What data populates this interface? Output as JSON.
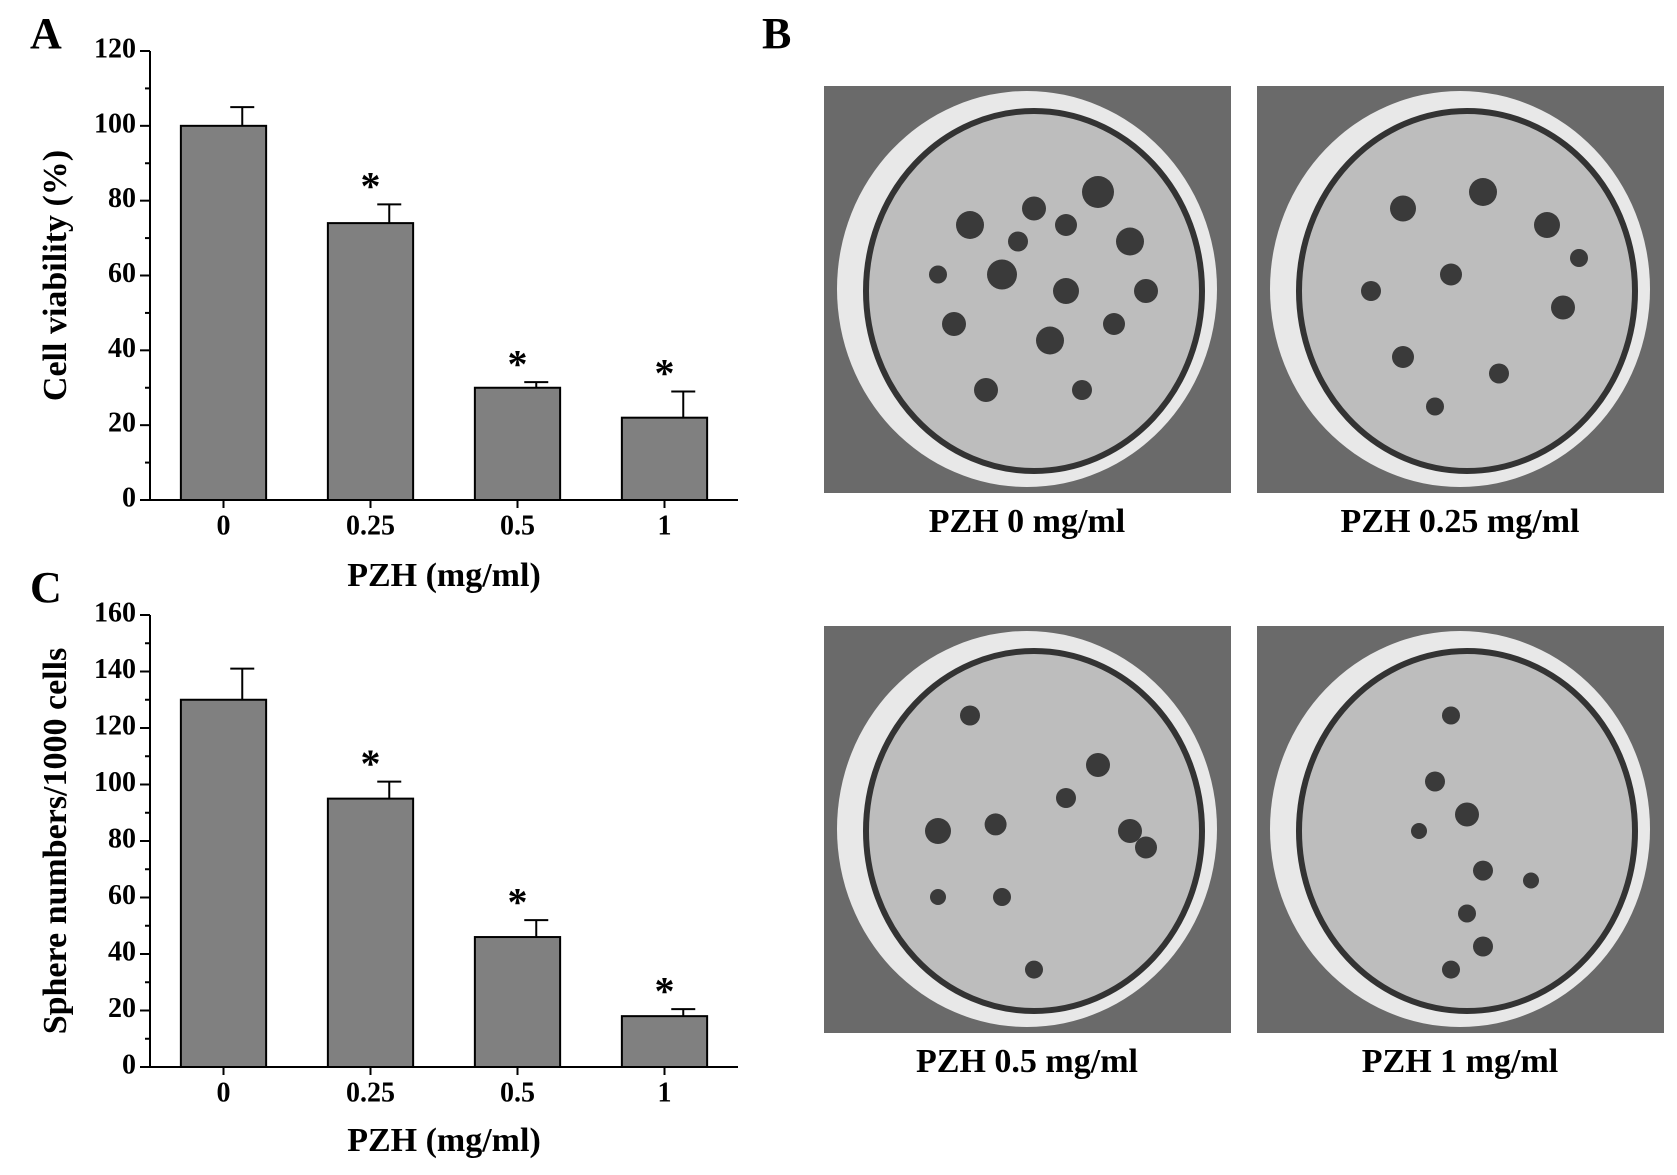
{
  "chart_data": [
    {
      "type": "bar",
      "panel": "A",
      "categories": [
        "0",
        "0.25",
        "0.5",
        "1"
      ],
      "values": [
        100,
        74,
        30,
        22
      ],
      "errors": [
        5,
        5,
        1.5,
        7
      ],
      "annotations": [
        null,
        "*",
        "*",
        "*"
      ],
      "color": "#808080",
      "xlabel": "PZH (mg/ml)",
      "ylabel": "Cell viability (%)",
      "ylim": [
        0,
        120
      ],
      "yticks": [
        0,
        20,
        40,
        60,
        80,
        100,
        120
      ]
    },
    {
      "type": "bar",
      "panel": "C",
      "categories": [
        "0",
        "0.25",
        "0.5",
        "1"
      ],
      "values": [
        130,
        95,
        46,
        18
      ],
      "errors": [
        11,
        6,
        6,
        2.5
      ],
      "annotations": [
        null,
        "*",
        "*",
        "*"
      ],
      "color": "#808080",
      "xlabel": "PZH (mg/ml)",
      "ylabel": "Sphere numbers/1000 cells",
      "ylim": [
        0,
        160
      ],
      "yticks": [
        0,
        20,
        40,
        60,
        80,
        100,
        120,
        140,
        160
      ]
    }
  ],
  "panel_b": {
    "label": "B",
    "images": [
      "PZH 0 mg/ml",
      "PZH 0.25 mg/ml",
      "PZH 0.5 mg/ml",
      "PZH 1 mg/ml"
    ]
  }
}
